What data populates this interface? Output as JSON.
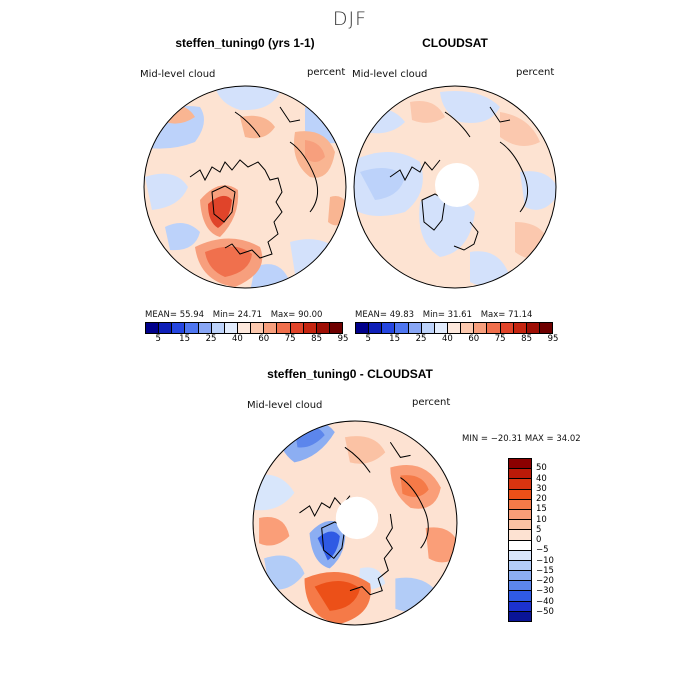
{
  "figure": {
    "season": "DJF"
  },
  "chart_data": [
    {
      "type": "heatmap",
      "title": "steffen_tuning0 (yrs 1-1)",
      "variable_label": "Mid-level cloud",
      "units_label": "percent",
      "stats": [
        "MEAN=  55.94",
        "Min=  24.71",
        "Max=  90.00"
      ],
      "colorbar": {
        "levels": [
          "5",
          "15",
          "25",
          "40",
          "60",
          "75",
          "85",
          "95"
        ],
        "colors": [
          "#00008b",
          "#0e1fb8",
          "#2546e0",
          "#4f76f0",
          "#88a6f5",
          "#bcd2fa",
          "#e2ecfd",
          "#fde8dc",
          "#fbc8ae",
          "#f79f7d",
          "#f0704d",
          "#e0442a",
          "#c52510",
          "#9e0f05",
          "#6e0000"
        ]
      }
    },
    {
      "type": "heatmap",
      "title": "CLOUDSAT",
      "variable_label": "Mid-level cloud",
      "units_label": "percent",
      "stats": [
        "MEAN=  49.83",
        "Min=  31.61",
        "Max=  71.14"
      ],
      "colorbar": {
        "levels": [
          "5",
          "15",
          "25",
          "40",
          "60",
          "75",
          "85",
          "95"
        ],
        "colors": [
          "#00008b",
          "#0e1fb8",
          "#2546e0",
          "#4f76f0",
          "#88a6f5",
          "#bcd2fa",
          "#e2ecfd",
          "#fde8dc",
          "#fbc8ae",
          "#f79f7d",
          "#f0704d",
          "#e0442a",
          "#c52510",
          "#9e0f05",
          "#6e0000"
        ]
      }
    },
    {
      "type": "heatmap",
      "title": "steffen_tuning0 - CLOUDSAT",
      "variable_label": "Mid-level cloud",
      "units_label": "percent",
      "minmax": "MIN = −20.31  MAX =   34.02",
      "colorbar": {
        "levels": [
          "50",
          "40",
          "30",
          "20",
          "15",
          "10",
          "5",
          "0",
          "−5",
          "−10",
          "−15",
          "−20",
          "−30",
          "−40",
          "−50"
        ],
        "colors": [
          "#8b0000",
          "#bb1a08",
          "#d83410",
          "#ec5018",
          "#f57a48",
          "#fa9e78",
          "#fbc2a4",
          "#fde2d2",
          "#ffffff",
          "#d8e6fb",
          "#b2ccf7",
          "#8caef2",
          "#5c86ec",
          "#2f5ae4",
          "#1c32d0",
          "#0a1496"
        ]
      }
    }
  ]
}
